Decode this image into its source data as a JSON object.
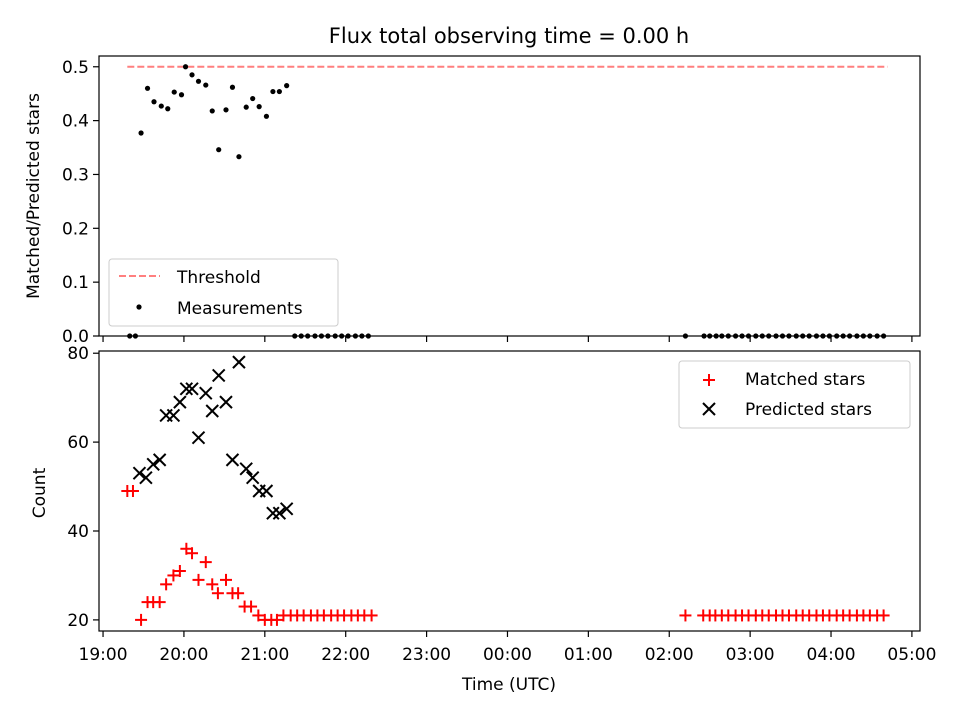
{
  "chart_data": [
    {
      "type": "scatter",
      "title": "Flux total observing time = 0.00 h",
      "xlabel": "",
      "ylabel": "Matched/Predicted stars",
      "ylim": [
        0,
        0.52
      ],
      "yticks": [
        "0.0",
        "0.1",
        "0.2",
        "0.3",
        "0.4",
        "0.5"
      ],
      "xlim_hours": [
        18.95,
        29.1
      ],
      "legend": {
        "placement": "lower-left",
        "entries": [
          "Threshold",
          "Measurements"
        ]
      },
      "threshold": {
        "name": "Threshold",
        "value": 0.5,
        "x_range": [
          19.3,
          28.7
        ],
        "color": "#ff7f7f"
      },
      "series": [
        {
          "name": "Measurements",
          "color": "#000000",
          "x": [
            19.33,
            19.4,
            19.47,
            19.55,
            19.63,
            19.72,
            19.8,
            19.88,
            19.97,
            20.02,
            20.1,
            20.18,
            20.27,
            20.35,
            20.43,
            20.52,
            20.6,
            20.68,
            20.77,
            20.85,
            20.93,
            21.02,
            21.1,
            21.18,
            21.27,
            21.37,
            21.45,
            21.53,
            21.62,
            21.7,
            21.78,
            21.87,
            21.95,
            22.03,
            22.12,
            22.2,
            22.28,
            26.2,
            26.43,
            26.5,
            26.58,
            26.65,
            26.73,
            26.82,
            26.9,
            26.98,
            27.07,
            27.15,
            27.23,
            27.32,
            27.4,
            27.48,
            27.57,
            27.65,
            27.73,
            27.82,
            27.9,
            27.98,
            28.07,
            28.15,
            28.23,
            28.32,
            28.4,
            28.48,
            28.57,
            28.65
          ],
          "y": [
            0.0,
            0.0,
            0.377,
            0.46,
            0.435,
            0.427,
            0.422,
            0.453,
            0.448,
            0.5,
            0.485,
            0.473,
            0.466,
            0.418,
            0.346,
            0.42,
            0.462,
            0.333,
            0.425,
            0.441,
            0.426,
            0.408,
            0.454,
            0.454,
            0.465,
            0.0,
            0.0,
            0.0,
            0.0,
            0.0,
            0.0,
            0.0,
            0.0,
            0.0,
            0.0,
            0.0,
            0.0,
            0.0,
            0.0,
            0.0,
            0.0,
            0.0,
            0.0,
            0.0,
            0.0,
            0.0,
            0.0,
            0.0,
            0.0,
            0.0,
            0.0,
            0.0,
            0.0,
            0.0,
            0.0,
            0.0,
            0.0,
            0.0,
            0.0,
            0.0,
            0.0,
            0.0,
            0.0,
            0.0,
            0.0,
            0.0
          ]
        }
      ]
    },
    {
      "type": "scatter",
      "title": "",
      "xlabel": "Time (UTC)",
      "ylabel": "Count",
      "ylim": [
        17.5,
        80.5
      ],
      "yticks": [
        "20",
        "40",
        "60",
        "80"
      ],
      "xlim_hours": [
        18.95,
        29.1
      ],
      "xticks": [
        "19:00",
        "20:00",
        "21:00",
        "22:00",
        "23:00",
        "00:00",
        "01:00",
        "02:00",
        "03:00",
        "04:00",
        "05:00"
      ],
      "legend": {
        "placement": "upper-right",
        "entries": [
          "Matched stars",
          "Predicted stars"
        ]
      },
      "series": [
        {
          "name": "Matched stars",
          "marker": "+",
          "color": "#ff0000",
          "x": [
            19.3,
            19.37,
            19.47,
            19.55,
            19.62,
            19.7,
            19.78,
            19.87,
            19.95,
            20.03,
            20.1,
            20.18,
            20.27,
            20.35,
            20.42,
            20.52,
            20.6,
            20.67,
            20.75,
            20.83,
            20.92,
            21.0,
            21.08,
            21.15,
            21.23,
            21.32,
            21.4,
            21.48,
            21.57,
            21.65,
            21.73,
            21.82,
            21.9,
            21.98,
            22.07,
            22.15,
            22.23,
            22.32,
            26.2,
            26.42,
            26.5,
            26.57,
            26.65,
            26.73,
            26.82,
            26.9,
            26.98,
            27.07,
            27.15,
            27.23,
            27.32,
            27.4,
            27.48,
            27.57,
            27.65,
            27.73,
            27.82,
            27.9,
            27.98,
            28.07,
            28.15,
            28.23,
            28.32,
            28.4,
            28.48,
            28.57,
            28.65
          ],
          "y": [
            49,
            49,
            20,
            24,
            24,
            24,
            28,
            30,
            31,
            36,
            35,
            29,
            33,
            28,
            26,
            29,
            26,
            26,
            23,
            23,
            21,
            20,
            20,
            20,
            21,
            21,
            21,
            21,
            21,
            21,
            21,
            21,
            21,
            21,
            21,
            21,
            21,
            21,
            21,
            21,
            21,
            21,
            21,
            21,
            21,
            21,
            21,
            21,
            21,
            21,
            21,
            21,
            21,
            21,
            21,
            21,
            21,
            21,
            21,
            21,
            21,
            21,
            21,
            21,
            21,
            21,
            21
          ]
        },
        {
          "name": "Predicted stars",
          "marker": "x",
          "color": "#000000",
          "x": [
            19.45,
            19.53,
            19.62,
            19.7,
            19.78,
            19.87,
            19.95,
            20.03,
            20.1,
            20.18,
            20.27,
            20.35,
            20.43,
            20.52,
            20.6,
            20.68,
            20.77,
            20.85,
            20.93,
            21.02,
            21.1,
            21.18,
            21.27
          ],
          "y": [
            53,
            52,
            55,
            56,
            66,
            66,
            69,
            72,
            72,
            61,
            71,
            67,
            75,
            69,
            56,
            78,
            54,
            52,
            49,
            49,
            44,
            44,
            45
          ]
        }
      ]
    }
  ]
}
